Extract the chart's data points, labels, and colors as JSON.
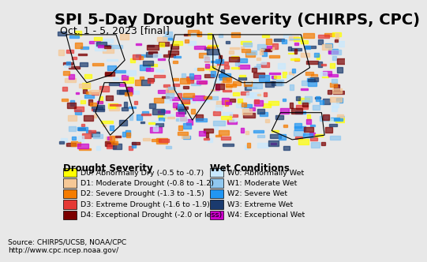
{
  "title": "SPI 5-Day Drought Severity (CHIRPS, CPC)",
  "subtitle": "Oct. 1 - 5, 2023 [final]",
  "title_fontsize": 14,
  "subtitle_fontsize": 9,
  "map_bg_color": "#aae8f0",
  "legend_bg_color": "#e8e8e8",
  "bottom_bg_color": "#d0d0d0",
  "drought_title": "Drought Severity",
  "wet_title": "Wet Conditions",
  "drought_items": [
    {
      "code": "D0",
      "label": "Abnormally Dry (-0.5 to -0.7)",
      "color": "#ffff00"
    },
    {
      "code": "D1",
      "label": "Moderate Drought (-0.8 to -1.2)",
      "color": "#f5c896"
    },
    {
      "code": "D2",
      "label": "Severe Drought (-1.3 to -1.5)",
      "color": "#f57c00"
    },
    {
      "code": "D3",
      "label": "Extreme Drought (-1.6 to -1.9)",
      "color": "#e53935"
    },
    {
      "code": "D4",
      "label": "Exceptional Drought (-2.0 or less)",
      "color": "#7b0000"
    }
  ],
  "wet_items": [
    {
      "code": "W0",
      "label": "Abnormally Wet",
      "color": "#c8e8ff"
    },
    {
      "code": "W1",
      "label": "Moderate Wet",
      "color": "#90c8f0"
    },
    {
      "code": "W2",
      "label": "Severe Wet",
      "color": "#2196f3"
    },
    {
      "code": "W3",
      "label": "Extreme Wet",
      "color": "#1a3a6e"
    },
    {
      "code": "W4",
      "label": "Exceptional Wet",
      "color": "#cc00cc"
    }
  ],
  "source_line1": "Source: CHIRPS/UCSB, NOAA/CPC",
  "source_line2": "http://www.cpc.ncep.noaa.gov/",
  "map_image_placeholder": true
}
